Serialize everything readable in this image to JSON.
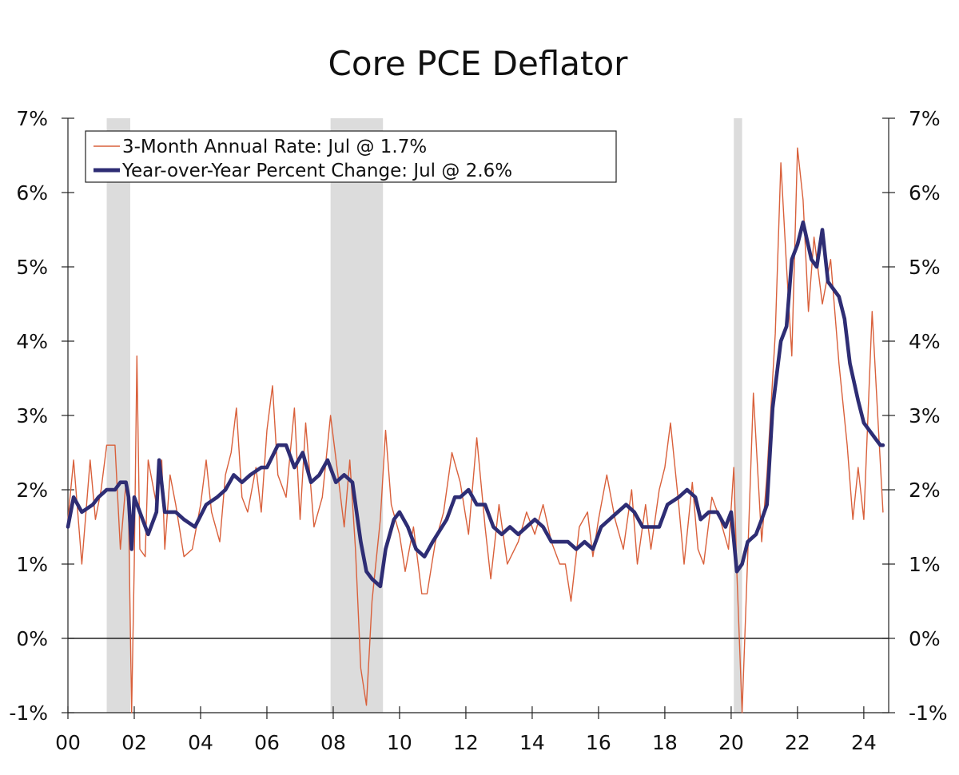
{
  "chart_data": {
    "type": "line",
    "title": "Core PCE Deflator",
    "xlabel": "",
    "ylabel": "",
    "x_range": [
      2000.0,
      2024.75
    ],
    "ylim": [
      -1,
      7
    ],
    "y_ticks": [
      -1,
      0,
      1,
      2,
      3,
      4,
      5,
      6,
      7
    ],
    "y_tick_labels": [
      "-1%",
      "0%",
      "1%",
      "2%",
      "3%",
      "4%",
      "5%",
      "6%",
      "7%"
    ],
    "x_ticks": [
      2000,
      2002,
      2004,
      2006,
      2008,
      2010,
      2012,
      2014,
      2016,
      2018,
      2020,
      2022,
      2024
    ],
    "x_tick_labels": [
      "00",
      "02",
      "04",
      "06",
      "08",
      "10",
      "12",
      "14",
      "16",
      "18",
      "20",
      "22",
      "24"
    ],
    "dual_y_axis": true,
    "grid": false,
    "zero_line": true,
    "legend_position": "top-left",
    "recessions": [
      {
        "start": 2001.17,
        "end": 2001.88
      },
      {
        "start": 2007.92,
        "end": 2009.5
      },
      {
        "start": 2020.08,
        "end": 2020.33
      }
    ],
    "series": [
      {
        "name": "3-Month Annual Rate: Jul @ 1.7%",
        "color": "#d9603b",
        "width": "thin",
        "points": [
          [
            2000.0,
            1.6
          ],
          [
            2000.17,
            2.4
          ],
          [
            2000.42,
            1.0
          ],
          [
            2000.67,
            2.4
          ],
          [
            2000.83,
            1.6
          ],
          [
            2001.0,
            2.0
          ],
          [
            2001.17,
            2.6
          ],
          [
            2001.42,
            2.6
          ],
          [
            2001.58,
            1.2
          ],
          [
            2001.75,
            2.1
          ],
          [
            2001.83,
            1.7
          ],
          [
            2001.92,
            -1.0
          ],
          [
            2002.0,
            1.0
          ],
          [
            2002.08,
            3.8
          ],
          [
            2002.17,
            1.2
          ],
          [
            2002.33,
            1.1
          ],
          [
            2002.42,
            2.4
          ],
          [
            2002.67,
            1.8
          ],
          [
            2002.83,
            2.4
          ],
          [
            2002.92,
            1.2
          ],
          [
            2003.08,
            2.2
          ],
          [
            2003.25,
            1.8
          ],
          [
            2003.5,
            1.1
          ],
          [
            2003.75,
            1.2
          ],
          [
            2004.0,
            1.8
          ],
          [
            2004.17,
            2.4
          ],
          [
            2004.33,
            1.7
          ],
          [
            2004.58,
            1.3
          ],
          [
            2004.75,
            2.2
          ],
          [
            2004.92,
            2.5
          ],
          [
            2005.08,
            3.1
          ],
          [
            2005.25,
            1.9
          ],
          [
            2005.42,
            1.7
          ],
          [
            2005.67,
            2.3
          ],
          [
            2005.83,
            1.7
          ],
          [
            2006.0,
            2.8
          ],
          [
            2006.17,
            3.4
          ],
          [
            2006.33,
            2.2
          ],
          [
            2006.58,
            1.9
          ],
          [
            2006.83,
            3.1
          ],
          [
            2007.0,
            1.6
          ],
          [
            2007.17,
            2.9
          ],
          [
            2007.42,
            1.5
          ],
          [
            2007.67,
            1.9
          ],
          [
            2007.92,
            3.0
          ],
          [
            2008.17,
            2.1
          ],
          [
            2008.33,
            1.5
          ],
          [
            2008.5,
            2.4
          ],
          [
            2008.67,
            1.2
          ],
          [
            2008.83,
            -0.4
          ],
          [
            2009.0,
            -0.9
          ],
          [
            2009.17,
            0.5
          ],
          [
            2009.42,
            1.6
          ],
          [
            2009.58,
            2.8
          ],
          [
            2009.75,
            1.8
          ],
          [
            2010.0,
            1.4
          ],
          [
            2010.17,
            0.9
          ],
          [
            2010.42,
            1.5
          ],
          [
            2010.67,
            0.6
          ],
          [
            2010.83,
            0.6
          ],
          [
            2011.08,
            1.3
          ],
          [
            2011.33,
            1.7
          ],
          [
            2011.58,
            2.5
          ],
          [
            2011.83,
            2.1
          ],
          [
            2012.08,
            1.4
          ],
          [
            2012.33,
            2.7
          ],
          [
            2012.58,
            1.5
          ],
          [
            2012.75,
            0.8
          ],
          [
            2013.0,
            1.8
          ],
          [
            2013.25,
            1.0
          ],
          [
            2013.58,
            1.3
          ],
          [
            2013.83,
            1.7
          ],
          [
            2014.08,
            1.4
          ],
          [
            2014.33,
            1.8
          ],
          [
            2014.58,
            1.3
          ],
          [
            2014.83,
            1.0
          ],
          [
            2015.0,
            1.0
          ],
          [
            2015.17,
            0.5
          ],
          [
            2015.42,
            1.5
          ],
          [
            2015.67,
            1.7
          ],
          [
            2015.83,
            1.1
          ],
          [
            2016.0,
            1.6
          ],
          [
            2016.25,
            2.2
          ],
          [
            2016.5,
            1.6
          ],
          [
            2016.75,
            1.2
          ],
          [
            2017.0,
            2.0
          ],
          [
            2017.17,
            1.0
          ],
          [
            2017.42,
            1.8
          ],
          [
            2017.58,
            1.2
          ],
          [
            2017.83,
            2.0
          ],
          [
            2018.0,
            2.3
          ],
          [
            2018.17,
            2.9
          ],
          [
            2018.42,
            1.8
          ],
          [
            2018.58,
            1.0
          ],
          [
            2018.83,
            2.1
          ],
          [
            2019.0,
            1.2
          ],
          [
            2019.17,
            1.0
          ],
          [
            2019.42,
            1.9
          ],
          [
            2019.67,
            1.6
          ],
          [
            2019.92,
            1.2
          ],
          [
            2020.08,
            2.3
          ],
          [
            2020.17,
            0.9
          ],
          [
            2020.33,
            -1.0
          ],
          [
            2020.5,
            1.1
          ],
          [
            2020.67,
            3.3
          ],
          [
            2020.92,
            1.3
          ],
          [
            2021.08,
            2.2
          ],
          [
            2021.33,
            4.1
          ],
          [
            2021.5,
            6.4
          ],
          [
            2021.67,
            5.0
          ],
          [
            2021.83,
            3.8
          ],
          [
            2022.0,
            6.6
          ],
          [
            2022.17,
            5.9
          ],
          [
            2022.33,
            4.4
          ],
          [
            2022.5,
            5.4
          ],
          [
            2022.75,
            4.5
          ],
          [
            2023.0,
            5.1
          ],
          [
            2023.25,
            3.7
          ],
          [
            2023.5,
            2.6
          ],
          [
            2023.67,
            1.6
          ],
          [
            2023.83,
            2.3
          ],
          [
            2024.0,
            1.6
          ],
          [
            2024.25,
            4.4
          ],
          [
            2024.42,
            3.0
          ],
          [
            2024.58,
            1.7
          ]
        ]
      },
      {
        "name": "Year-over-Year Percent Change: Jul @ 2.6%",
        "color": "#2e2d74",
        "width": "thick",
        "points": [
          [
            2000.0,
            1.5
          ],
          [
            2000.17,
            1.9
          ],
          [
            2000.42,
            1.7
          ],
          [
            2000.75,
            1.8
          ],
          [
            2000.92,
            1.9
          ],
          [
            2001.17,
            2.0
          ],
          [
            2001.42,
            2.0
          ],
          [
            2001.58,
            2.1
          ],
          [
            2001.75,
            2.1
          ],
          [
            2001.83,
            1.9
          ],
          [
            2001.92,
            1.2
          ],
          [
            2002.0,
            1.9
          ],
          [
            2002.17,
            1.7
          ],
          [
            2002.42,
            1.4
          ],
          [
            2002.67,
            1.7
          ],
          [
            2002.75,
            2.4
          ],
          [
            2002.92,
            1.7
          ],
          [
            2003.25,
            1.7
          ],
          [
            2003.5,
            1.6
          ],
          [
            2003.83,
            1.5
          ],
          [
            2004.17,
            1.8
          ],
          [
            2004.5,
            1.9
          ],
          [
            2004.75,
            2.0
          ],
          [
            2005.0,
            2.2
          ],
          [
            2005.25,
            2.1
          ],
          [
            2005.5,
            2.2
          ],
          [
            2005.83,
            2.3
          ],
          [
            2006.0,
            2.3
          ],
          [
            2006.33,
            2.6
          ],
          [
            2006.58,
            2.6
          ],
          [
            2006.83,
            2.3
          ],
          [
            2007.08,
            2.5
          ],
          [
            2007.33,
            2.1
          ],
          [
            2007.58,
            2.2
          ],
          [
            2007.83,
            2.4
          ],
          [
            2008.08,
            2.1
          ],
          [
            2008.33,
            2.2
          ],
          [
            2008.58,
            2.1
          ],
          [
            2008.83,
            1.3
          ],
          [
            2009.0,
            0.9
          ],
          [
            2009.17,
            0.8
          ],
          [
            2009.42,
            0.7
          ],
          [
            2009.58,
            1.2
          ],
          [
            2009.83,
            1.6
          ],
          [
            2010.0,
            1.7
          ],
          [
            2010.25,
            1.5
          ],
          [
            2010.5,
            1.2
          ],
          [
            2010.75,
            1.1
          ],
          [
            2011.0,
            1.3
          ],
          [
            2011.42,
            1.6
          ],
          [
            2011.67,
            1.9
          ],
          [
            2011.83,
            1.9
          ],
          [
            2012.08,
            2.0
          ],
          [
            2012.33,
            1.8
          ],
          [
            2012.58,
            1.8
          ],
          [
            2012.83,
            1.5
          ],
          [
            2013.08,
            1.4
          ],
          [
            2013.33,
            1.5
          ],
          [
            2013.58,
            1.4
          ],
          [
            2013.83,
            1.5
          ],
          [
            2014.08,
            1.6
          ],
          [
            2014.33,
            1.5
          ],
          [
            2014.58,
            1.3
          ],
          [
            2014.83,
            1.3
          ],
          [
            2015.08,
            1.3
          ],
          [
            2015.33,
            1.2
          ],
          [
            2015.58,
            1.3
          ],
          [
            2015.83,
            1.2
          ],
          [
            2016.08,
            1.5
          ],
          [
            2016.33,
            1.6
          ],
          [
            2016.58,
            1.7
          ],
          [
            2016.83,
            1.8
          ],
          [
            2017.08,
            1.7
          ],
          [
            2017.33,
            1.5
          ],
          [
            2017.58,
            1.5
          ],
          [
            2017.83,
            1.5
          ],
          [
            2018.08,
            1.8
          ],
          [
            2018.42,
            1.9
          ],
          [
            2018.67,
            2.0
          ],
          [
            2018.92,
            1.9
          ],
          [
            2019.08,
            1.6
          ],
          [
            2019.33,
            1.7
          ],
          [
            2019.58,
            1.7
          ],
          [
            2019.83,
            1.5
          ],
          [
            2020.0,
            1.7
          ],
          [
            2020.17,
            0.9
          ],
          [
            2020.33,
            1.0
          ],
          [
            2020.5,
            1.3
          ],
          [
            2020.75,
            1.4
          ],
          [
            2020.92,
            1.6
          ],
          [
            2021.08,
            1.8
          ],
          [
            2021.25,
            3.1
          ],
          [
            2021.5,
            4.0
          ],
          [
            2021.67,
            4.2
          ],
          [
            2021.83,
            5.1
          ],
          [
            2022.0,
            5.3
          ],
          [
            2022.17,
            5.6
          ],
          [
            2022.42,
            5.1
          ],
          [
            2022.58,
            5.0
          ],
          [
            2022.75,
            5.5
          ],
          [
            2022.92,
            4.8
          ],
          [
            2023.25,
            4.6
          ],
          [
            2023.42,
            4.3
          ],
          [
            2023.58,
            3.7
          ],
          [
            2023.83,
            3.2
          ],
          [
            2024.0,
            2.9
          ],
          [
            2024.33,
            2.7
          ],
          [
            2024.5,
            2.6
          ],
          [
            2024.58,
            2.6
          ]
        ]
      }
    ]
  }
}
